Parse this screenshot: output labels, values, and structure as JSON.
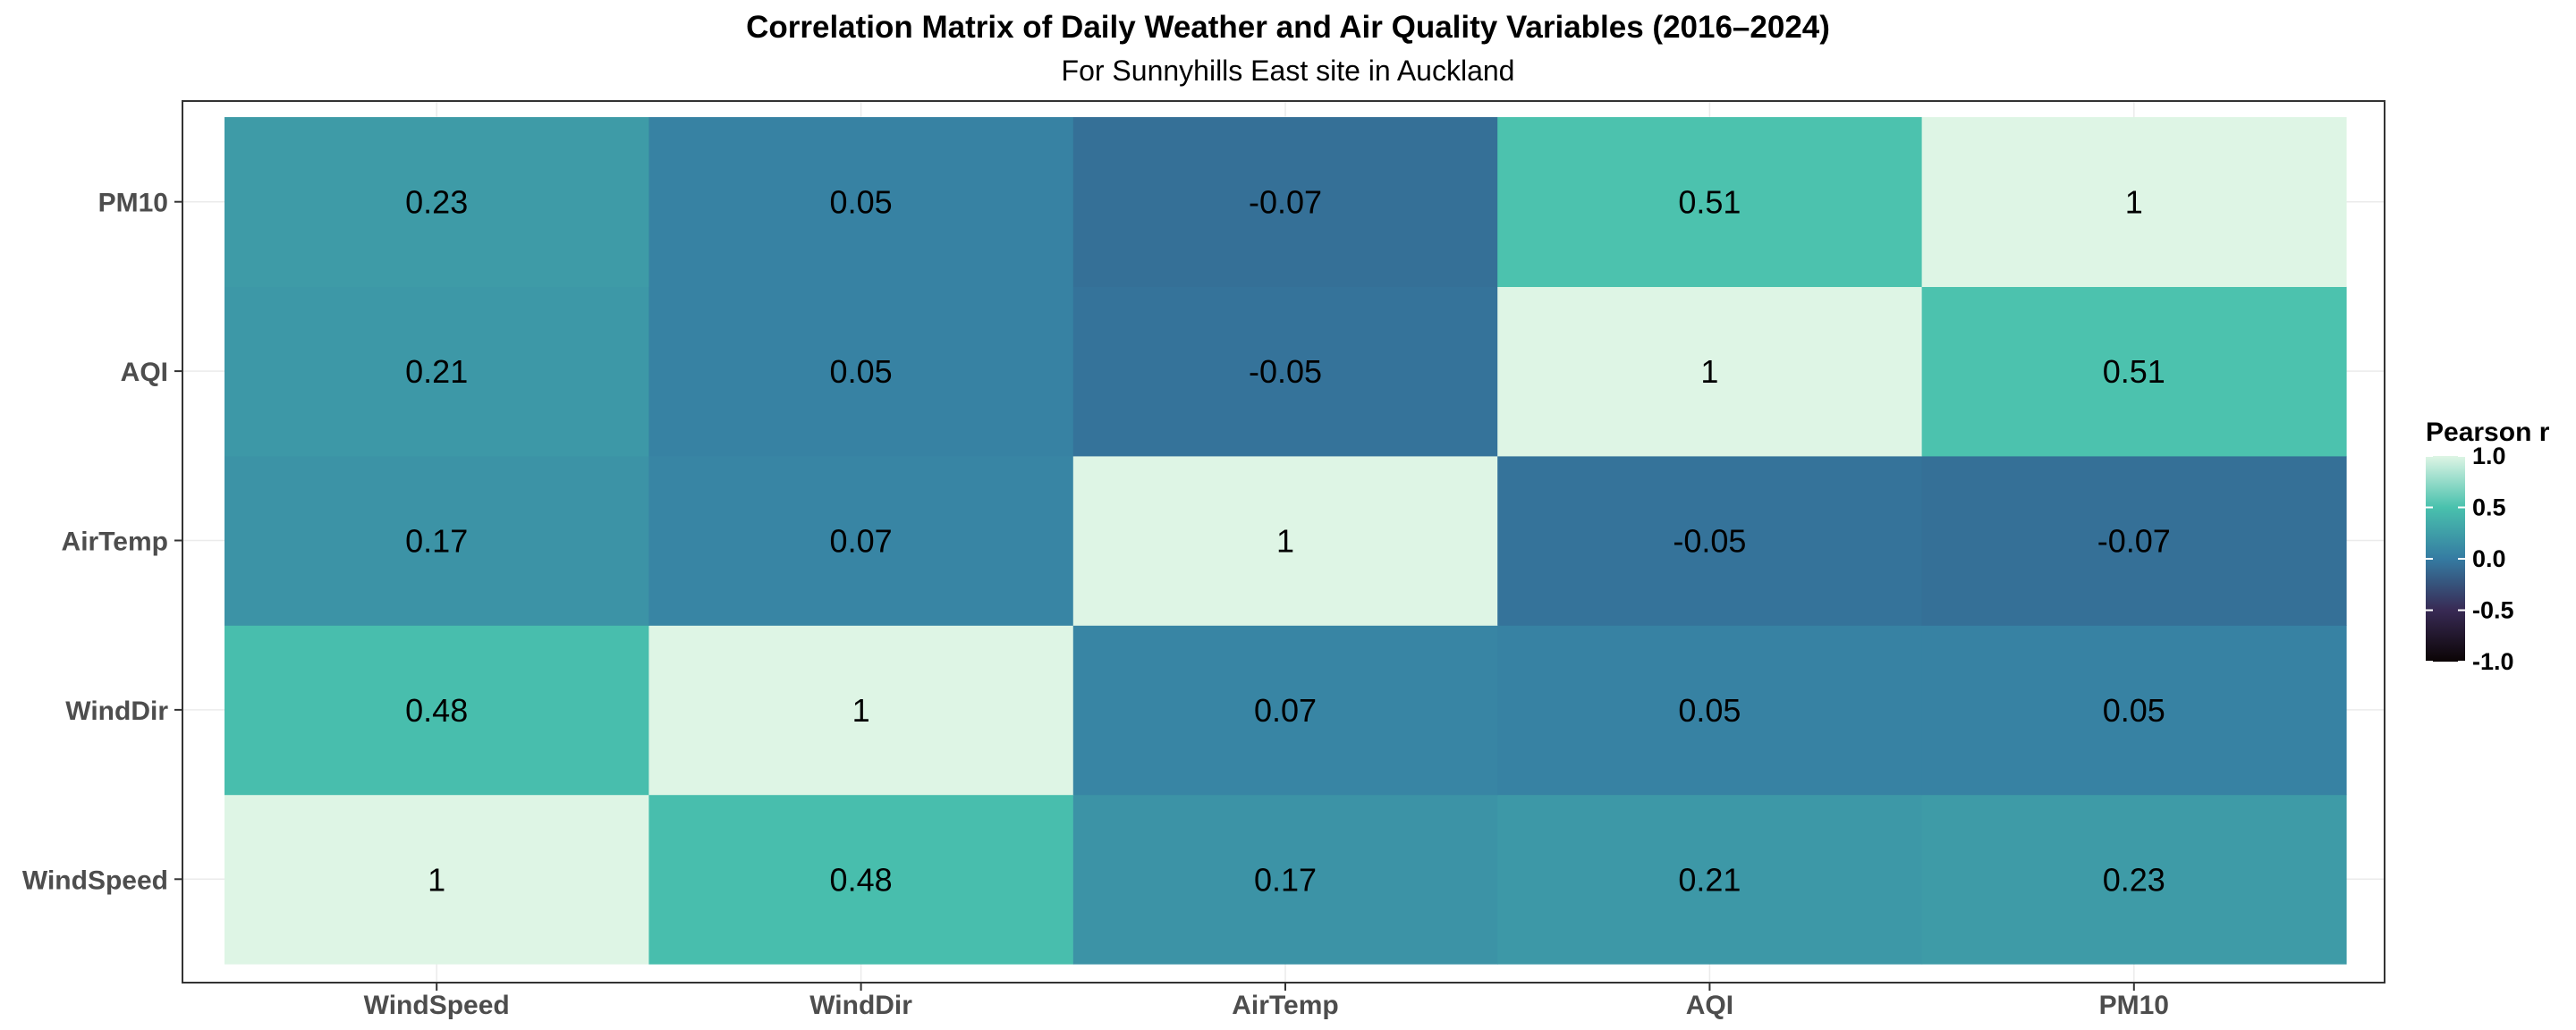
{
  "chart_data": {
    "type": "heatmap",
    "title": "Correlation Matrix of Daily Weather and Air Quality Variables (2016–2024)",
    "subtitle": "For  Sunnyhills East site  in Auckland",
    "x_categories": [
      "WindSpeed",
      "WindDir",
      "AirTemp",
      "AQI",
      "PM10"
    ],
    "y_categories": [
      "WindSpeed",
      "WindDir",
      "AirTemp",
      "AQI",
      "PM10"
    ],
    "values": [
      [
        1,
        0.48,
        0.17,
        0.21,
        0.23
      ],
      [
        0.48,
        1,
        0.07,
        0.05,
        0.05
      ],
      [
        0.17,
        0.07,
        1,
        -0.05,
        -0.07
      ],
      [
        0.21,
        0.05,
        -0.05,
        1,
        0.51
      ],
      [
        0.23,
        0.05,
        -0.07,
        0.51,
        1
      ]
    ],
    "labels": [
      [
        "1",
        "0.48",
        "0.17",
        "0.21",
        "0.23"
      ],
      [
        "0.48",
        "1",
        "0.07",
        "0.05",
        "0.05"
      ],
      [
        "0.17",
        "0.07",
        "1",
        "-0.05",
        "-0.07"
      ],
      [
        "0.21",
        "0.05",
        "-0.05",
        "1",
        "0.51"
      ],
      [
        "0.23",
        "0.05",
        "-0.07",
        "0.51",
        "1"
      ]
    ],
    "legend": {
      "title": "Pearson r",
      "ticks": [
        "1.0",
        "0.5",
        "0.0",
        "-0.5",
        "-1.0"
      ],
      "tick_values": [
        1.0,
        0.5,
        0.0,
        -0.5,
        -1.0
      ],
      "placement": "right"
    },
    "color_scale": {
      "domain": [
        -1.0,
        -0.5,
        0.0,
        0.5,
        1.0
      ],
      "colors": [
        "#0b0405",
        "#382a54",
        "#357ba2",
        "#49c1ad",
        "#def5e5"
      ]
    },
    "grid": true
  }
}
